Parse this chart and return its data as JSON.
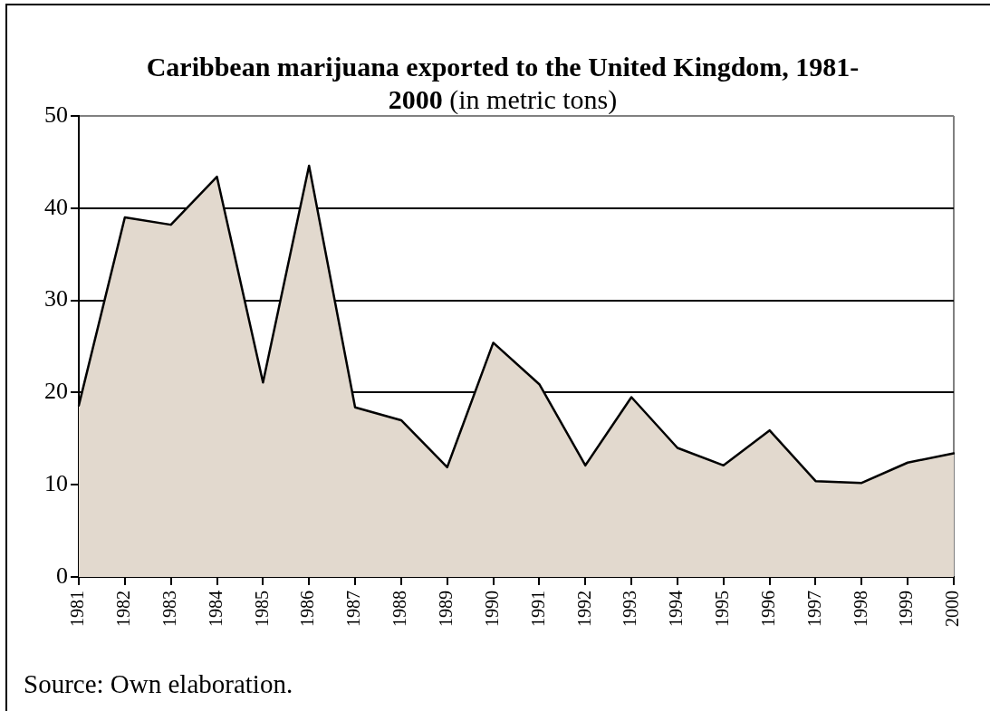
{
  "chart_data": {
    "type": "area",
    "title": "Caribbean marijuana exported to the United Kingdom, 1981-2000 (in metric tons)",
    "categories": [
      "1981",
      "1982",
      "1983",
      "1984",
      "1985",
      "1986",
      "1987",
      "1988",
      "1989",
      "1990",
      "1991",
      "1992",
      "1993",
      "1994",
      "1995",
      "1996",
      "1997",
      "1998",
      "1999",
      "2000"
    ],
    "values": [
      18.6,
      39.0,
      38.2,
      43.4,
      21.1,
      44.6,
      18.4,
      17.0,
      11.9,
      25.4,
      20.9,
      12.1,
      19.5,
      14.0,
      12.1,
      15.9,
      10.4,
      10.2,
      12.4,
      13.4
    ],
    "color": "#e2d9ce",
    "ylim": [
      0,
      50
    ],
    "yticks": [
      0,
      10,
      20,
      30,
      40,
      50
    ],
    "grid": "y",
    "annotations": [
      "Source: Own elaboration."
    ]
  }
}
